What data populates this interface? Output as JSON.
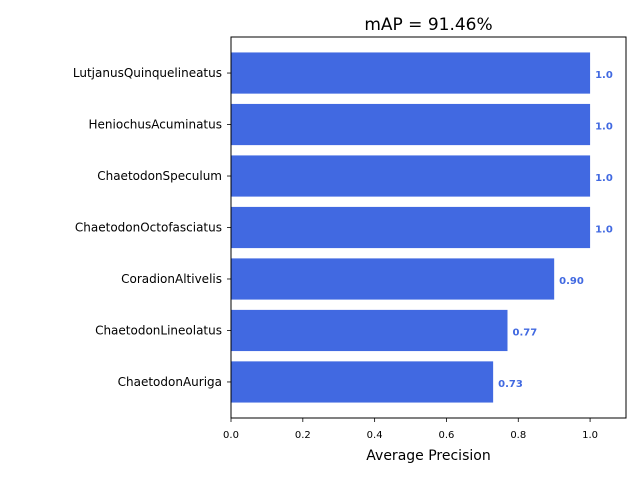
{
  "chart_data": {
    "type": "bar",
    "orientation": "horizontal",
    "title": "mAP = 91.46%",
    "xlabel": "Average Precision",
    "ylabel": "",
    "categories": [
      "LutjanusQuinquelineatus",
      "HeniochusAcuminatus",
      "ChaetodonSpeculum",
      "ChaetodonOctofasciatus",
      "CoradionAltivelis",
      "ChaetodonLineolatus",
      "ChaetodonAuriga"
    ],
    "values": [
      1.0,
      1.0,
      1.0,
      1.0,
      0.9,
      0.77,
      0.73
    ],
    "value_labels": [
      "1.0",
      "1.0",
      "1.0",
      "1.0",
      "0.90",
      "0.77",
      "0.73"
    ],
    "xlim": [
      0,
      1.1
    ],
    "xticks": [
      0.0,
      0.2,
      0.4,
      0.6,
      0.8,
      1.0
    ],
    "xtick_labels": [
      "0.0",
      "0.2",
      "0.4",
      "0.6",
      "0.8",
      "1.0"
    ],
    "grid": false,
    "bar_color": "#4169e1",
    "label_color": "#4169e1"
  }
}
